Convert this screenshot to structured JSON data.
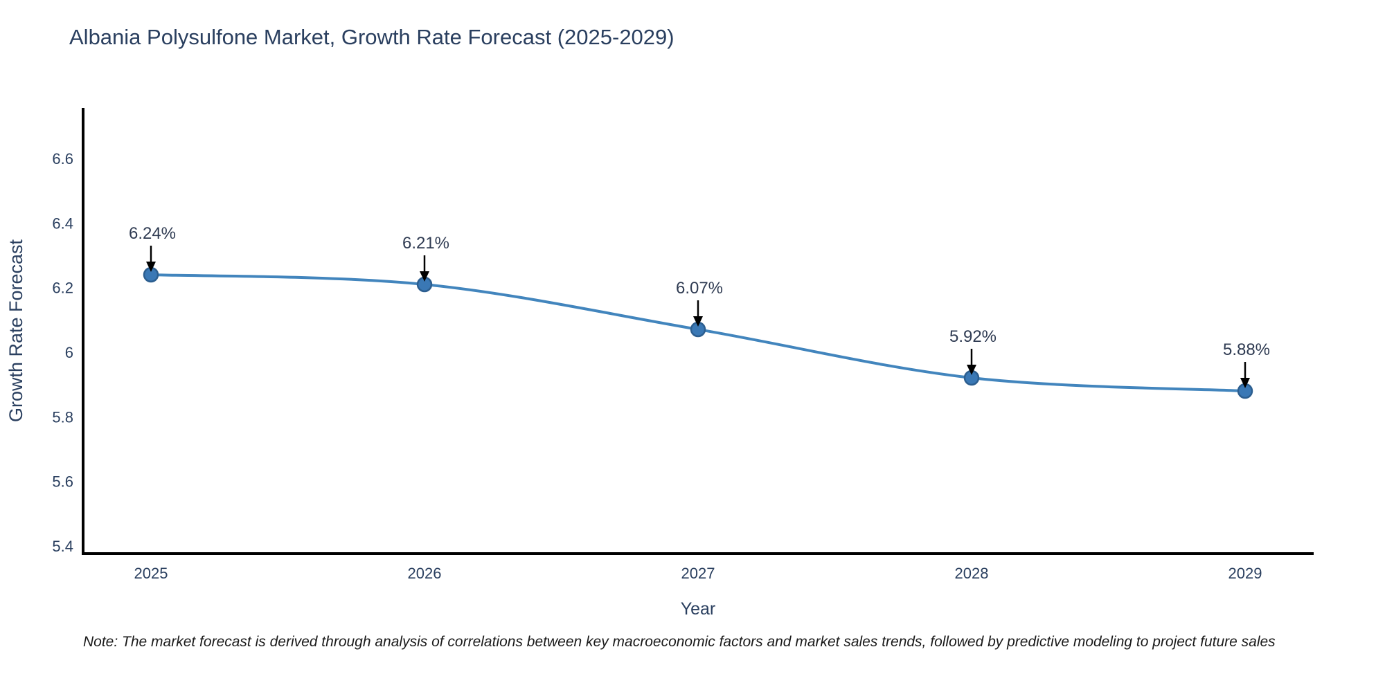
{
  "header": {
    "title": "Albania Polysulfone Market, Growth Rate Forecast (2025-2029)"
  },
  "chart_data": {
    "type": "line",
    "title": "Albania Polysulfone Market, Growth Rate Forecast (2025-2029)",
    "categories": [
      "2025",
      "2026",
      "2027",
      "2028",
      "2029"
    ],
    "series": [
      {
        "name": "Growth Rate Forecast",
        "values": [
          6.24,
          6.21,
          6.07,
          5.92,
          5.88
        ]
      }
    ],
    "point_labels": [
      "6.24%",
      "6.21%",
      "6.07%",
      "5.92%",
      "5.88%"
    ],
    "xlabel": "Year",
    "ylabel": "Growth Rate Forecast",
    "ytick_labels": [
      "5.4",
      "5.6",
      "5.8",
      "6",
      "6.2",
      "6.4",
      "6.6"
    ],
    "ylim": [
      5.38,
      6.74
    ],
    "grid": false,
    "legend_position": "none",
    "line_color": "#4285bd",
    "marker_color": "#3a78b5",
    "marker_edge_color": "#2c5e8f",
    "arrow_color": "#000000",
    "axis_line_color": "#000000",
    "text_color": "#2a3f5f"
  },
  "footer": {
    "note": "Note: The market forecast is derived through analysis of correlations between key macroeconomic factors and market sales trends, followed by predictive modeling to project future sales"
  }
}
